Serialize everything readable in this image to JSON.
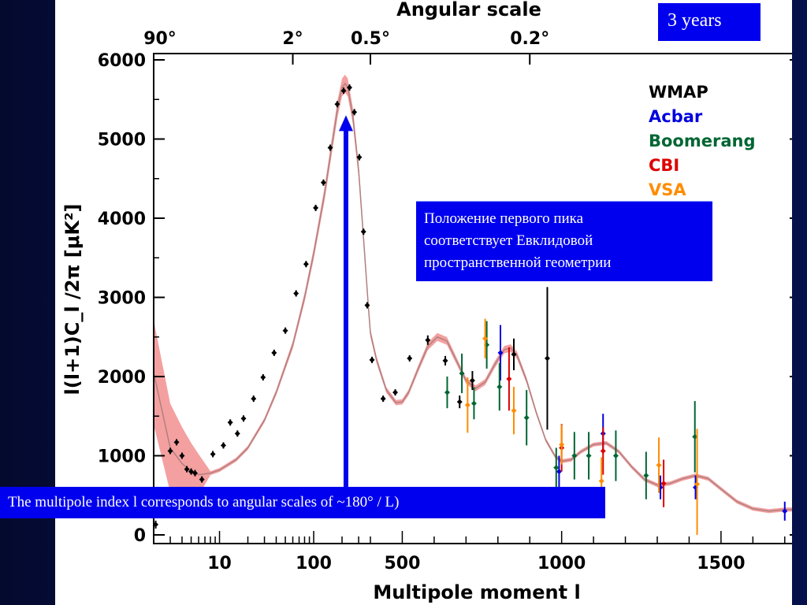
{
  "badge": "3 years",
  "peak_note_lines": [
    "Положение первого пика",
    "соответствует Евклидовой",
    "пространственной геометрии"
  ],
  "multipole_note": "The multipole index l corresponds to angular scales of ~180°  / L)",
  "colors": {
    "background": "#0a1a5e",
    "annotation_box": "#0000ee",
    "band": "#f4a0a0",
    "model_line": "#b08080",
    "WMAP": "#000000",
    "Acbar": "#0000dd",
    "Boomerang": "#006633",
    "CBI": "#dd0000",
    "VSA": "#ff8c00"
  },
  "chart_data": {
    "type": "scatter",
    "title": "",
    "top_axis_label": "Angular scale",
    "top_ticks": [
      {
        "label": "90°",
        "l": 2
      },
      {
        "label": "2°",
        "l": 60
      },
      {
        "label": "0.5°",
        "l": 400
      },
      {
        "label": "0.2°",
        "l": 900
      }
    ],
    "xlabel": "Multipole moment  l",
    "ylabel": "l(l+1)C_l /2π [μK²]",
    "x_scale": "log below l=400, linear above",
    "xlim": [
      2,
      1750
    ],
    "ylim": [
      0,
      6000
    ],
    "x_tick_labels": [
      {
        "label": "10",
        "l": 10
      },
      {
        "label": "100",
        "l": 100
      },
      {
        "label": "500",
        "l": 500
      },
      {
        "label": "1000",
        "l": 1000
      },
      {
        "label": "1500",
        "l": 1500
      }
    ],
    "y_tick_labels": [
      "0",
      "1000",
      "2000",
      "3000",
      "4000",
      "5000",
      "6000"
    ],
    "legend": {
      "placement": "top-right",
      "entries": [
        "WMAP",
        "Acbar",
        "Boomerang",
        "CBI",
        "VSA"
      ]
    },
    "arrow": {
      "l": 220,
      "from_y": 600,
      "to_y": 5300
    },
    "model_curve": [
      [
        2,
        2050
      ],
      [
        3,
        1100
      ],
      [
        4,
        900
      ],
      [
        5,
        800
      ],
      [
        6,
        760
      ],
      [
        8,
        780
      ],
      [
        10,
        820
      ],
      [
        15,
        950
      ],
      [
        20,
        1100
      ],
      [
        30,
        1450
      ],
      [
        40,
        1800
      ],
      [
        60,
        2400
      ],
      [
        80,
        3000
      ],
      [
        100,
        3550
      ],
      [
        130,
        4300
      ],
      [
        160,
        5000
      ],
      [
        180,
        5400
      ],
      [
        200,
        5650
      ],
      [
        215,
        5700
      ],
      [
        230,
        5650
      ],
      [
        260,
        5300
      ],
      [
        300,
        4600
      ],
      [
        340,
        3700
      ],
      [
        380,
        2900
      ],
      [
        400,
        2550
      ],
      [
        420,
        2200
      ],
      [
        450,
        1830
      ],
      [
        480,
        1670
      ],
      [
        500,
        1680
      ],
      [
        520,
        1800
      ],
      [
        550,
        2100
      ],
      [
        580,
        2380
      ],
      [
        610,
        2500
      ],
      [
        640,
        2450
      ],
      [
        670,
        2200
      ],
      [
        700,
        1950
      ],
      [
        730,
        1850
      ],
      [
        760,
        1930
      ],
      [
        790,
        2150
      ],
      [
        820,
        2340
      ],
      [
        840,
        2360
      ],
      [
        860,
        2270
      ],
      [
        890,
        1950
      ],
      [
        920,
        1550
      ],
      [
        950,
        1200
      ],
      [
        980,
        990
      ],
      [
        1000,
        930
      ],
      [
        1030,
        950
      ],
      [
        1060,
        1050
      ],
      [
        1100,
        1140
      ],
      [
        1140,
        1160
      ],
      [
        1180,
        1050
      ],
      [
        1220,
        860
      ],
      [
        1260,
        700
      ],
      [
        1300,
        630
      ],
      [
        1340,
        650
      ],
      [
        1380,
        710
      ],
      [
        1420,
        750
      ],
      [
        1460,
        710
      ],
      [
        1500,
        580
      ],
      [
        1550,
        420
      ],
      [
        1600,
        330
      ],
      [
        1650,
        300
      ],
      [
        1700,
        320
      ],
      [
        1750,
        320
      ]
    ],
    "series": [
      {
        "name": "WMAP",
        "points": [
          {
            "l": 2.1,
            "y": 130,
            "err": 50
          },
          {
            "l": 3,
            "y": 1060,
            "err": 40
          },
          {
            "l": 3.5,
            "y": 1170,
            "err": 40
          },
          {
            "l": 4,
            "y": 1000,
            "err": 40
          },
          {
            "l": 4.5,
            "y": 830,
            "err": 40
          },
          {
            "l": 5,
            "y": 800,
            "err": 40
          },
          {
            "l": 5.5,
            "y": 780,
            "err": 40
          },
          {
            "l": 6.5,
            "y": 700,
            "err": 40
          },
          {
            "l": 8.5,
            "y": 1020,
            "err": 40
          },
          {
            "l": 11,
            "y": 1130,
            "err": 40
          },
          {
            "l": 13,
            "y": 1420,
            "err": 40
          },
          {
            "l": 15.5,
            "y": 1280,
            "err": 40
          },
          {
            "l": 18,
            "y": 1470,
            "err": 40
          },
          {
            "l": 23,
            "y": 1720,
            "err": 40
          },
          {
            "l": 29,
            "y": 1990,
            "err": 40
          },
          {
            "l": 38,
            "y": 2300,
            "err": 40
          },
          {
            "l": 50,
            "y": 2580,
            "err": 40
          },
          {
            "l": 65,
            "y": 3050,
            "err": 40
          },
          {
            "l": 83,
            "y": 3420,
            "err": 40
          },
          {
            "l": 105,
            "y": 4130,
            "err": 40
          },
          {
            "l": 127,
            "y": 4450,
            "err": 40
          },
          {
            "l": 150,
            "y": 4890,
            "err": 40
          },
          {
            "l": 178,
            "y": 5440,
            "err": 40
          },
          {
            "l": 208,
            "y": 5610,
            "err": 40
          },
          {
            "l": 240,
            "y": 5650,
            "err": 40
          },
          {
            "l": 270,
            "y": 5340,
            "err": 40
          },
          {
            "l": 305,
            "y": 4770,
            "err": 40
          },
          {
            "l": 338,
            "y": 3830,
            "err": 40
          },
          {
            "l": 370,
            "y": 2900,
            "err": 40
          },
          {
            "l": 405,
            "y": 2210,
            "err": 40
          },
          {
            "l": 440,
            "y": 1720,
            "err": 40
          },
          {
            "l": 478,
            "y": 1800,
            "err": 40
          },
          {
            "l": 523,
            "y": 2230,
            "err": 40
          },
          {
            "l": 580,
            "y": 2460,
            "err": 60
          },
          {
            "l": 635,
            "y": 2200,
            "err": 60
          },
          {
            "l": 680,
            "y": 1680,
            "err": 80
          },
          {
            "l": 720,
            "y": 1950,
            "err": 120
          },
          {
            "l": 850,
            "y": 2280,
            "err": 200
          },
          {
            "l": 955,
            "y": 2230,
            "err": 900
          }
        ]
      },
      {
        "name": "Acbar",
        "points": [
          {
            "l": 808,
            "y": 2300,
            "err": 350
          },
          {
            "l": 992,
            "y": 800,
            "err": 200
          },
          {
            "l": 1130,
            "y": 1280,
            "err": 250
          },
          {
            "l": 1310,
            "y": 600,
            "err": 150
          },
          {
            "l": 1420,
            "y": 600,
            "err": 150
          },
          {
            "l": 1700,
            "y": 300,
            "err": 120
          }
        ]
      },
      {
        "name": "Boomerang",
        "points": [
          {
            "l": 641,
            "y": 1800,
            "err": 200
          },
          {
            "l": 687,
            "y": 2040,
            "err": 250
          },
          {
            "l": 725,
            "y": 1660,
            "err": 200
          },
          {
            "l": 765,
            "y": 2400,
            "err": 300
          },
          {
            "l": 805,
            "y": 1870,
            "err": 300
          },
          {
            "l": 890,
            "y": 1480,
            "err": 350
          },
          {
            "l": 983,
            "y": 850,
            "err": 250
          },
          {
            "l": 1040,
            "y": 1000,
            "err": 300
          },
          {
            "l": 1085,
            "y": 1000,
            "err": 300
          },
          {
            "l": 1170,
            "y": 1000,
            "err": 320
          },
          {
            "l": 1265,
            "y": 750,
            "err": 300
          },
          {
            "l": 1418,
            "y": 1240,
            "err": 450
          }
        ]
      },
      {
        "name": "CBI",
        "points": [
          {
            "l": 835,
            "y": 1970,
            "err": 400
          },
          {
            "l": 1000,
            "y": 1100,
            "err": 300
          },
          {
            "l": 1130,
            "y": 1060,
            "err": 300
          },
          {
            "l": 1320,
            "y": 650,
            "err": 300
          }
        ]
      },
      {
        "name": "VSA",
        "points": [
          {
            "l": 705,
            "y": 1640,
            "err": 350
          },
          {
            "l": 760,
            "y": 2480,
            "err": 250
          },
          {
            "l": 850,
            "y": 1570,
            "err": 300
          },
          {
            "l": 1000,
            "y": 1140,
            "err": 250
          },
          {
            "l": 1125,
            "y": 680,
            "err": 300
          },
          {
            "l": 1305,
            "y": 880,
            "err": 350
          },
          {
            "l": 1425,
            "y": 640,
            "err": 700
          }
        ]
      }
    ]
  }
}
